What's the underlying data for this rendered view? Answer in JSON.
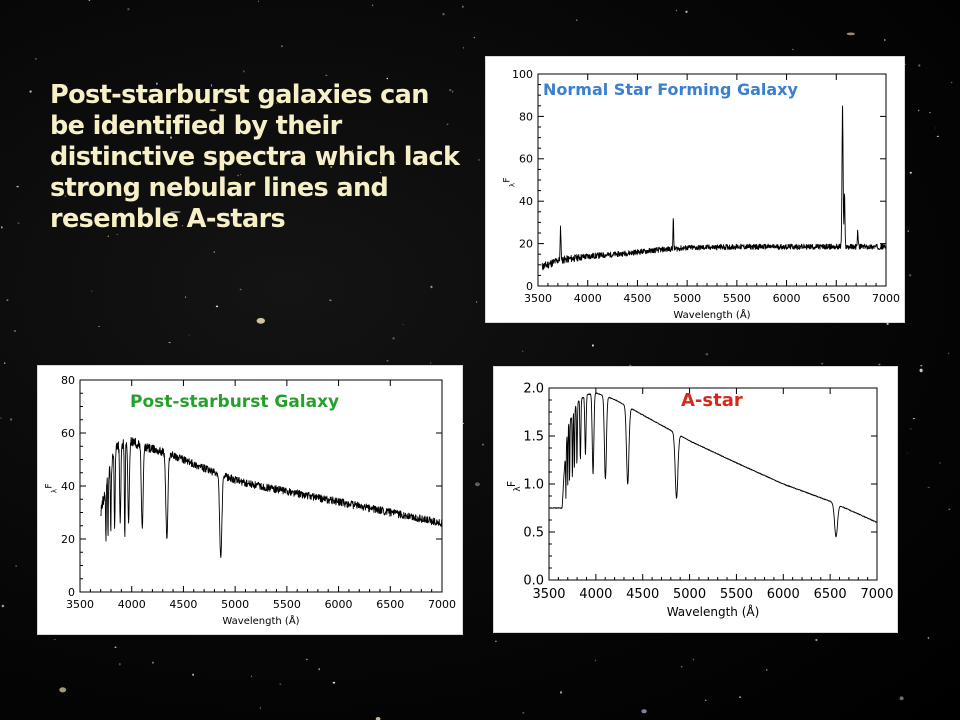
{
  "slide": {
    "headline": "Post-starburst galaxies can be identified by their distinctive spectra which lack strong nebular lines and resemble A-stars",
    "colors": {
      "headline": "#f7f0c6",
      "background": "#050505"
    }
  },
  "chart_data": [
    {
      "id": "normal",
      "type": "line",
      "title": "Normal Star Forming Galaxy",
      "title_color": "#3a7fd0",
      "xlabel": "Wavelength (Å)",
      "ylabel": "F",
      "ylabel_sub": "λ",
      "xlim": [
        3500,
        7000
      ],
      "ylim": [
        0,
        100
      ],
      "xticks": [
        "3500",
        "4000",
        "4500",
        "5000",
        "5500",
        "6000",
        "6500",
        "7000"
      ],
      "yticks": [
        "0",
        "20",
        "40",
        "60",
        "80",
        "100"
      ],
      "continuum": [
        [
          3540,
          9
        ],
        [
          3700,
          12
        ],
        [
          4000,
          14
        ],
        [
          4300,
          15
        ],
        [
          4700,
          17
        ],
        [
          5000,
          18
        ],
        [
          5500,
          18.5
        ],
        [
          6000,
          18.5
        ],
        [
          6500,
          18.5
        ],
        [
          7000,
          18.5
        ]
      ],
      "absorption": [],
      "emission": [
        [
          3727,
          15,
          6
        ],
        [
          4861,
          14,
          5
        ],
        [
          6563,
          68,
          8
        ],
        [
          6583,
          25,
          6
        ],
        [
          6716,
          8,
          5
        ]
      ],
      "noise": 1.6
    },
    {
      "id": "psb",
      "type": "line",
      "title": "Post-starburst Galaxy",
      "title_color": "#27a02a",
      "xlabel": "Wavelength (Å)",
      "ylabel": "F",
      "ylabel_sub": "λ",
      "xlim": [
        3500,
        7000
      ],
      "ylim": [
        0,
        80
      ],
      "xticks": [
        "3500",
        "4000",
        "4500",
        "5000",
        "5500",
        "6000",
        "6500",
        "7000"
      ],
      "yticks": [
        "0",
        "20",
        "40",
        "60",
        "80"
      ],
      "continuum": [
        [
          3700,
          30
        ],
        [
          3780,
          45
        ],
        [
          3850,
          55
        ],
        [
          4000,
          57
        ],
        [
          4100,
          55
        ],
        [
          4300,
          53
        ],
        [
          4500,
          50
        ],
        [
          4800,
          45
        ],
        [
          5100,
          41
        ],
        [
          5500,
          38
        ],
        [
          6000,
          34
        ],
        [
          6500,
          30
        ],
        [
          7000,
          26
        ]
      ],
      "absorption": [
        [
          3750,
          18,
          4
        ],
        [
          3771,
          20,
          4
        ],
        [
          3798,
          22,
          5
        ],
        [
          3835,
          24,
          6
        ],
        [
          3889,
          26,
          8
        ],
        [
          3933,
          20,
          6
        ],
        [
          3970,
          26,
          10
        ],
        [
          4102,
          24,
          12
        ],
        [
          4340,
          20,
          14
        ],
        [
          4861,
          13,
          15
        ]
      ],
      "emission": [],
      "noise": 1.8
    },
    {
      "id": "astar",
      "type": "line",
      "title": "A-star",
      "title_color": "#d42a1e",
      "xlabel": "Wavelength (Å)",
      "ylabel": "F",
      "ylabel_sub": "λ",
      "xlim": [
        3500,
        7000
      ],
      "ylim": [
        0,
        2
      ],
      "xticks": [
        "3500",
        "4000",
        "4500",
        "5000",
        "5500",
        "6000",
        "6500",
        "7000"
      ],
      "yticks": [
        "0.0",
        "0.5",
        "1.0",
        "1.5",
        "2.0"
      ],
      "continuum": [
        [
          3500,
          0.75
        ],
        [
          3640,
          0.75
        ],
        [
          3660,
          1.1
        ],
        [
          3700,
          1.6
        ],
        [
          3800,
          1.85
        ],
        [
          3900,
          1.93
        ],
        [
          4000,
          1.95
        ],
        [
          4200,
          1.88
        ],
        [
          4500,
          1.72
        ],
        [
          5000,
          1.45
        ],
        [
          5500,
          1.22
        ],
        [
          6000,
          1.0
        ],
        [
          6500,
          0.82
        ],
        [
          7000,
          0.6
        ]
      ],
      "absorption": [
        [
          3680,
          0.85,
          4
        ],
        [
          3700,
          0.95,
          4
        ],
        [
          3720,
          1.0,
          4
        ],
        [
          3750,
          1.05,
          5
        ],
        [
          3771,
          1.15,
          5
        ],
        [
          3798,
          1.2,
          6
        ],
        [
          3835,
          1.25,
          7
        ],
        [
          3889,
          1.3,
          9
        ],
        [
          3970,
          1.1,
          12
        ],
        [
          4102,
          1.05,
          15
        ],
        [
          4340,
          1.0,
          18
        ],
        [
          4861,
          0.85,
          20
        ],
        [
          6563,
          0.45,
          22
        ]
      ],
      "emission": [],
      "noise": 0.004
    }
  ]
}
